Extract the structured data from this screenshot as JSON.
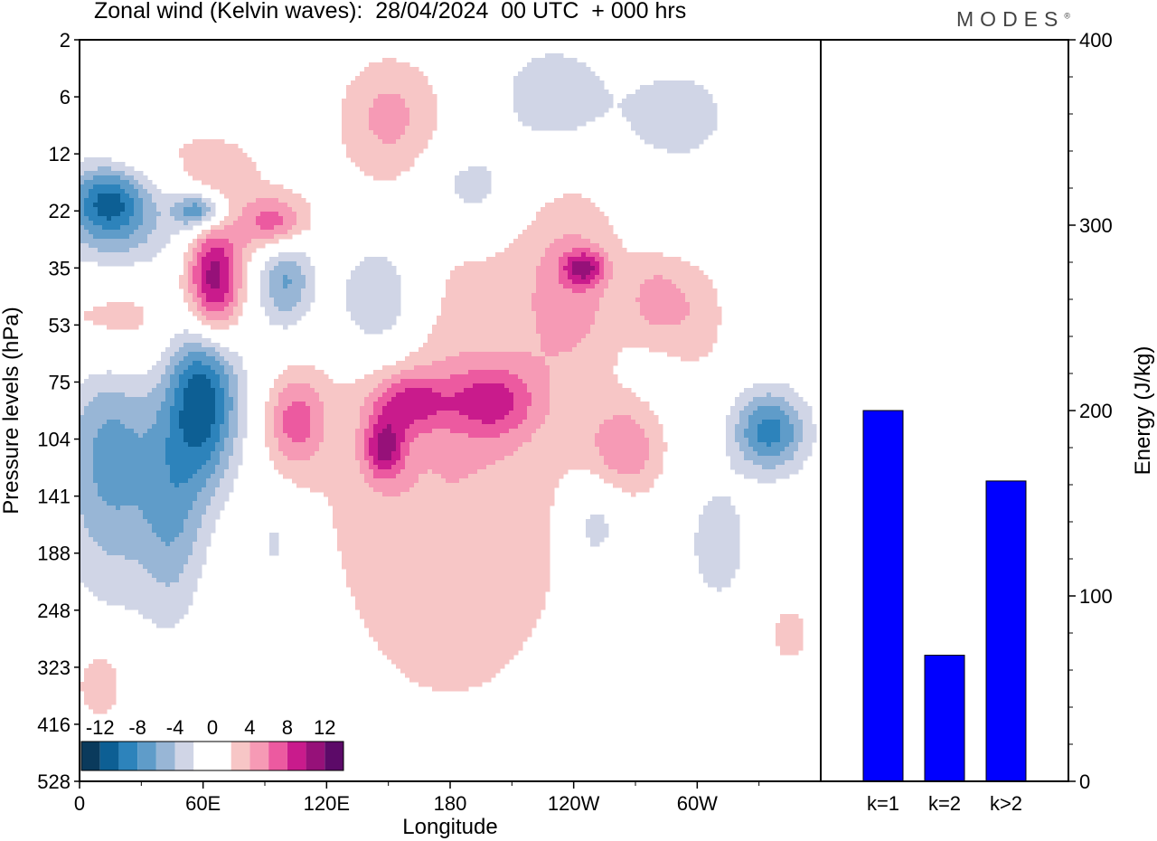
{
  "header": {
    "title": "Zonal wind (Kelvin waves):  28/04/2024  00 UTC  + 000 hrs",
    "brand": "MODES",
    "brand_mark": "®"
  },
  "chart_data": [
    {
      "type": "heatmap",
      "title": "Zonal wind (Kelvin waves):  28/04/2024  00 UTC  + 000 hrs",
      "xlabel": "Longitude",
      "ylabel": "Pressure levels (hPa)",
      "x_ticks": [
        "0",
        "60E",
        "120E",
        "180",
        "120W",
        "60W"
      ],
      "y_ticks": [
        "2",
        "6",
        "12",
        "22",
        "35",
        "53",
        "75",
        "104",
        "141",
        "188",
        "248",
        "323",
        "416",
        "528"
      ],
      "colorbar": {
        "labels": [
          "-12",
          "-8",
          "-4",
          "0",
          "4",
          "8",
          "12"
        ],
        "colors": [
          "#0a3a5c",
          "#0d5f94",
          "#2d83bb",
          "#5f9cc9",
          "#98b6d6",
          "#d0d5e6",
          "#ffffff",
          "#ffffff",
          "#f7c6c6",
          "#f69ab5",
          "#ec5aa0",
          "#c91b8c",
          "#961179",
          "#5c0a68"
        ]
      },
      "blobs": [
        {
          "lon": 15,
          "lev": 20,
          "r": 18,
          "h": 0.9,
          "v": -7
        },
        {
          "lon": 20,
          "lev": 27,
          "r": 32,
          "h": 1.1,
          "v": -10
        },
        {
          "lon": 58,
          "lev": 22,
          "r": 12,
          "h": 0.8,
          "v": -9
        },
        {
          "lon": 30,
          "lev": 15,
          "r": 28,
          "h": 1.4,
          "v": 4
        },
        {
          "lon": 70,
          "lev": 15,
          "r": 20,
          "h": 0.9,
          "v": 3
        },
        {
          "lon": 95,
          "lev": 25,
          "r": 16,
          "h": 0.9,
          "v": 8
        },
        {
          "lon": 18,
          "lev": 45,
          "r": 32,
          "h": 1.2,
          "v": 8
        },
        {
          "lon": 65,
          "lev": 40,
          "r": 14,
          "h": 2.2,
          "v": 13
        },
        {
          "lon": 60,
          "lev": 80,
          "r": 18,
          "h": 2.5,
          "v": -12
        },
        {
          "lon": 100,
          "lev": 38,
          "r": 14,
          "h": 1.8,
          "v": -7
        },
        {
          "lon": 15,
          "lev": 110,
          "r": 24,
          "h": 2.8,
          "v": -7
        },
        {
          "lon": 45,
          "lev": 160,
          "r": 16,
          "h": 3.2,
          "v": -5
        },
        {
          "lon": 105,
          "lev": 95,
          "r": 14,
          "h": 1.6,
          "v": 6
        },
        {
          "lon": 145,
          "lev": 45,
          "r": 22,
          "h": 1.4,
          "v": -6
        },
        {
          "lon": 180,
          "lev": 120,
          "r": 70,
          "h": 1.9,
          "v": 4
        },
        {
          "lon": 148,
          "lev": 110,
          "r": 10,
          "h": 1.5,
          "v": 8
        },
        {
          "lon": 160,
          "lev": 85,
          "r": 18,
          "h": 0.8,
          "v": 6
        },
        {
          "lon": 200,
          "lev": 85,
          "r": 22,
          "h": 0.8,
          "v": 6
        },
        {
          "lon": 240,
          "lev": 40,
          "r": 24,
          "h": 1.8,
          "v": 4
        },
        {
          "lon": 245,
          "lev": 35,
          "r": 10,
          "h": 0.8,
          "v": 7
        },
        {
          "lon": 265,
          "lev": 110,
          "r": 18,
          "h": 1.2,
          "v": 5
        },
        {
          "lon": 280,
          "lev": 45,
          "r": 14,
          "h": 1.5,
          "v": 4
        },
        {
          "lon": 300,
          "lev": 50,
          "r": 16,
          "h": 1.8,
          "v": 3
        },
        {
          "lon": 335,
          "lev": 100,
          "r": 18,
          "h": 1.1,
          "v": -9
        },
        {
          "lon": 310,
          "lev": 180,
          "r": 14,
          "h": 2.0,
          "v": -4
        },
        {
          "lon": 250,
          "lev": 165,
          "r": 14,
          "h": 1.7,
          "v": -4
        },
        {
          "lon": 345,
          "lev": 280,
          "r": 8,
          "h": 1.6,
          "v": 4
        },
        {
          "lon": 95,
          "lev": 180,
          "r": 10,
          "h": 2.2,
          "v": -3
        },
        {
          "lon": 150,
          "lev": 8,
          "r": 24,
          "h": 1.2,
          "v": 4
        },
        {
          "lon": 230,
          "lev": 6,
          "r": 30,
          "h": 0.9,
          "v": -4
        },
        {
          "lon": 290,
          "lev": 8,
          "r": 24,
          "h": 0.9,
          "v": -4
        },
        {
          "lon": 190,
          "lev": 18,
          "r": 24,
          "h": 0.9,
          "v": -4
        },
        {
          "lon": 10,
          "lev": 350,
          "r": 12,
          "h": 1.5,
          "v": 4
        }
      ]
    },
    {
      "type": "bar",
      "categories": [
        "k=1",
        "k=2",
        "k>2"
      ],
      "values": [
        200,
        68,
        162
      ],
      "ylabel": "Energy (J/kg)",
      "ylim": [
        0,
        400
      ],
      "y_ticks": [
        "0",
        "100",
        "200",
        "300",
        "400"
      ],
      "bar_color": "#0000ff"
    }
  ]
}
